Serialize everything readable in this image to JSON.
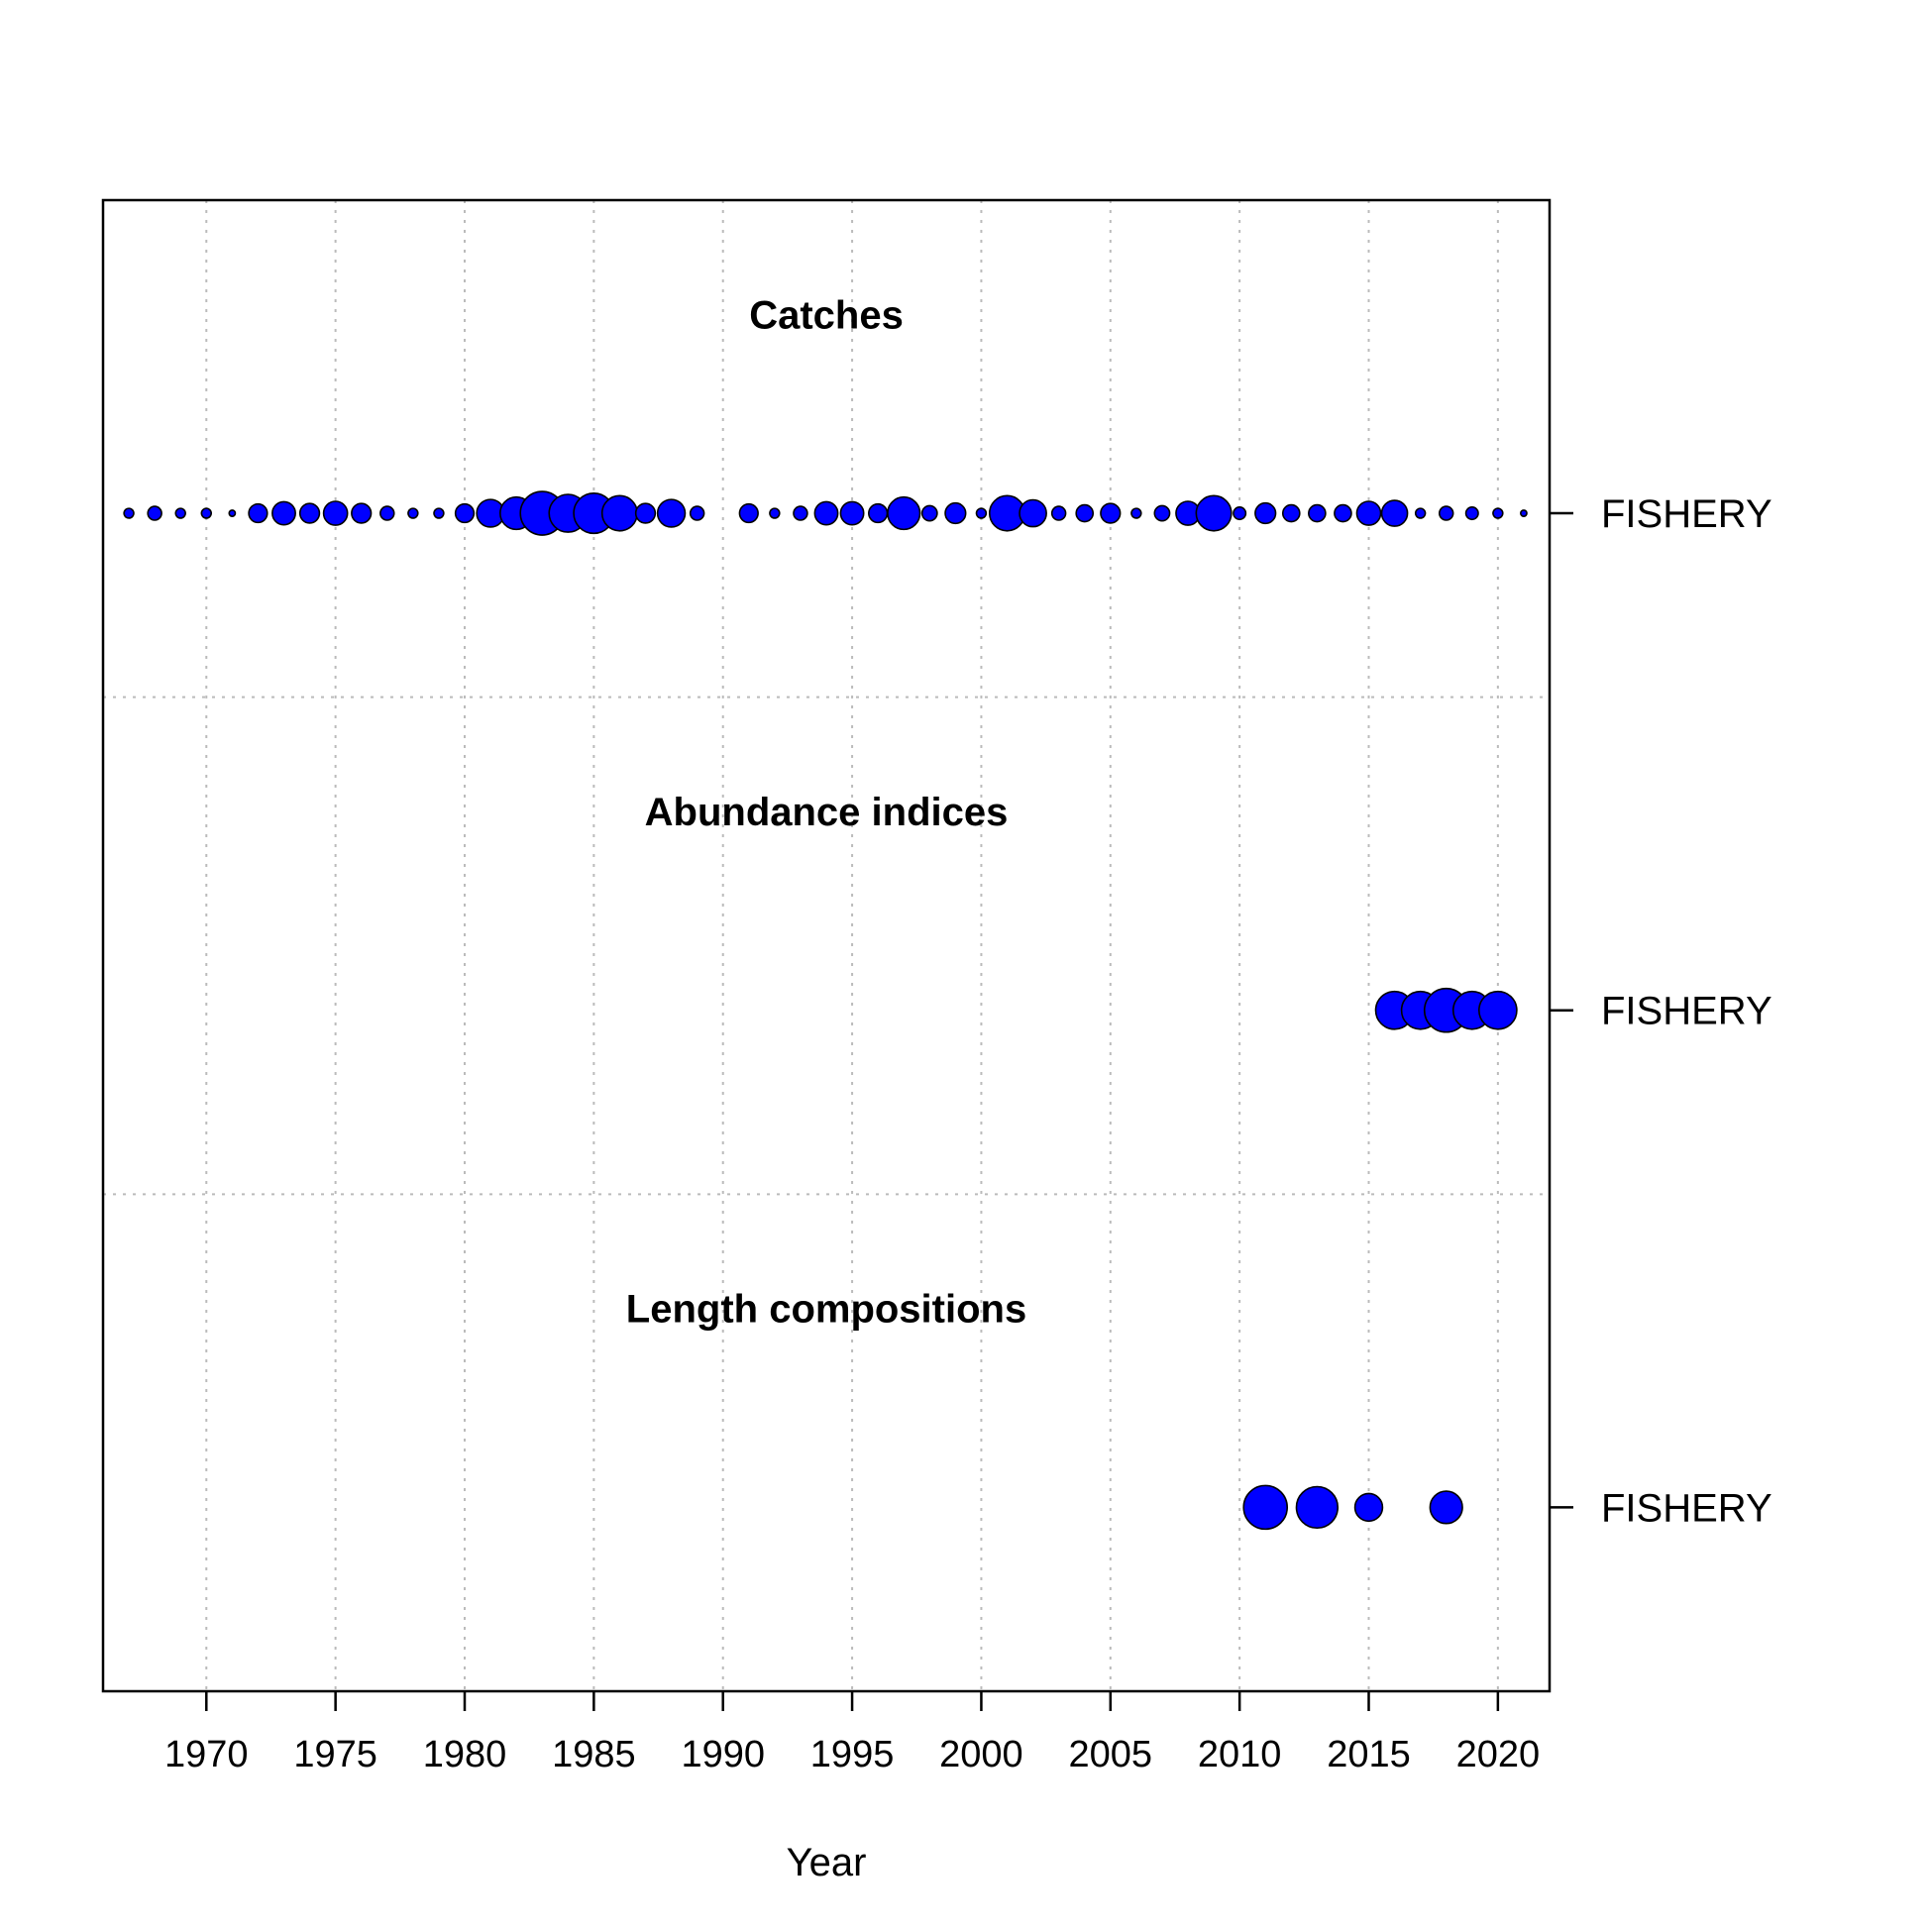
{
  "chart_data": {
    "type": "scatter",
    "xlabel": "Year",
    "xlim": [
      1966,
      2022
    ],
    "x_ticks": [
      "1970",
      "1975",
      "1980",
      "1985",
      "1990",
      "1995",
      "2000",
      "2005",
      "2010",
      "2015",
      "2020"
    ],
    "grid": true,
    "point_fill": "#0000ff",
    "point_stroke": "#000000",
    "series_note_size": "bubble area proportional to relative data amount",
    "panels": [
      {
        "title": "Catches",
        "fleet": "FISHERY",
        "points": [
          {
            "x": 1967,
            "s": 0.05
          },
          {
            "x": 1968,
            "s": 0.1
          },
          {
            "x": 1969,
            "s": 0.05
          },
          {
            "x": 1970,
            "s": 0.05
          },
          {
            "x": 1971,
            "s": 0.02
          },
          {
            "x": 1972,
            "s": 0.18
          },
          {
            "x": 1973,
            "s": 0.28
          },
          {
            "x": 1974,
            "s": 0.2
          },
          {
            "x": 1975,
            "s": 0.3
          },
          {
            "x": 1976,
            "s": 0.2
          },
          {
            "x": 1977,
            "s": 0.1
          },
          {
            "x": 1978,
            "s": 0.05
          },
          {
            "x": 1979,
            "s": 0.05
          },
          {
            "x": 1980,
            "s": 0.18
          },
          {
            "x": 1981,
            "s": 0.4
          },
          {
            "x": 1982,
            "s": 0.55
          },
          {
            "x": 1983,
            "s": 1.0
          },
          {
            "x": 1984,
            "s": 0.75
          },
          {
            "x": 1985,
            "s": 0.85
          },
          {
            "x": 1986,
            "s": 0.65
          },
          {
            "x": 1987,
            "s": 0.2
          },
          {
            "x": 1988,
            "s": 0.4
          },
          {
            "x": 1989,
            "s": 0.1
          },
          {
            "x": 1991,
            "s": 0.18
          },
          {
            "x": 1992,
            "s": 0.05
          },
          {
            "x": 1993,
            "s": 0.1
          },
          {
            "x": 1994,
            "s": 0.28
          },
          {
            "x": 1995,
            "s": 0.28
          },
          {
            "x": 1996,
            "s": 0.18
          },
          {
            "x": 1997,
            "s": 0.55
          },
          {
            "x": 1998,
            "s": 0.12
          },
          {
            "x": 1999,
            "s": 0.22
          },
          {
            "x": 2000,
            "s": 0.05
          },
          {
            "x": 2001,
            "s": 0.65
          },
          {
            "x": 2002,
            "s": 0.38
          },
          {
            "x": 2003,
            "s": 0.1
          },
          {
            "x": 2004,
            "s": 0.15
          },
          {
            "x": 2005,
            "s": 0.2
          },
          {
            "x": 2006,
            "s": 0.05
          },
          {
            "x": 2007,
            "s": 0.12
          },
          {
            "x": 2008,
            "s": 0.3
          },
          {
            "x": 2009,
            "s": 0.65
          },
          {
            "x": 2010,
            "s": 0.08
          },
          {
            "x": 2011,
            "s": 0.22
          },
          {
            "x": 2012,
            "s": 0.15
          },
          {
            "x": 2013,
            "s": 0.15
          },
          {
            "x": 2014,
            "s": 0.15
          },
          {
            "x": 2015,
            "s": 0.3
          },
          {
            "x": 2016,
            "s": 0.35
          },
          {
            "x": 2017,
            "s": 0.05
          },
          {
            "x": 2018,
            "s": 0.1
          },
          {
            "x": 2019,
            "s": 0.08
          },
          {
            "x": 2020,
            "s": 0.05
          },
          {
            "x": 2021,
            "s": 0.02
          }
        ]
      },
      {
        "title": "Abundance indices",
        "fleet": "FISHERY",
        "points": [
          {
            "x": 2016,
            "s": 0.75
          },
          {
            "x": 2017,
            "s": 0.75
          },
          {
            "x": 2018,
            "s": 1.0
          },
          {
            "x": 2019,
            "s": 0.75
          },
          {
            "x": 2020,
            "s": 0.75
          }
        ]
      },
      {
        "title": "Length compositions",
        "fleet": "FISHERY",
        "points": [
          {
            "x": 2011,
            "s": 1.0
          },
          {
            "x": 2013,
            "s": 0.9
          },
          {
            "x": 2015,
            "s": 0.4
          },
          {
            "x": 2018,
            "s": 0.55
          }
        ]
      }
    ]
  }
}
